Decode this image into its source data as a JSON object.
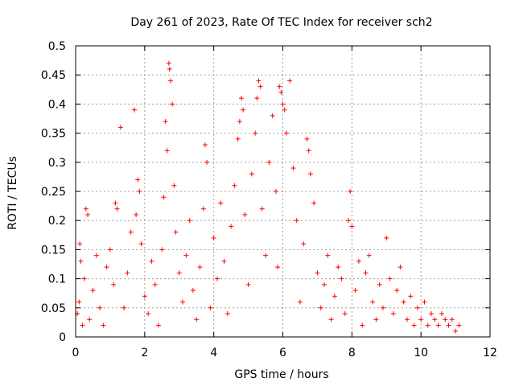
{
  "chart_data": {
    "type": "scatter",
    "title": "Day 261 of 2023, Rate Of TEC Index for receiver sch2",
    "xlabel": "GPS time / hours",
    "ylabel": "ROTI / TECUs",
    "xlim": [
      0,
      12
    ],
    "ylim": [
      0,
      0.5
    ],
    "xticks": [
      "0",
      "2",
      "4",
      "6",
      "8",
      "10",
      "12"
    ],
    "yticks": [
      "0",
      "0.05",
      "0.1",
      "0.15",
      "0.2",
      "0.25",
      "0.3",
      "0.35",
      "0.4",
      "0.45",
      "0.5"
    ],
    "grid": true,
    "legend": "none",
    "marker": "plus",
    "color": "#ff0000",
    "series": [
      {
        "values": [
          [
            0.05,
            0.04
          ],
          [
            0.1,
            0.06
          ],
          [
            0.12,
            0.16
          ],
          [
            0.15,
            0.13
          ],
          [
            0.2,
            0.02
          ],
          [
            0.25,
            0.1
          ],
          [
            0.3,
            0.22
          ],
          [
            0.35,
            0.21
          ],
          [
            0.4,
            0.03
          ],
          [
            0.5,
            0.08
          ],
          [
            0.6,
            0.14
          ],
          [
            0.7,
            0.05
          ],
          [
            0.8,
            0.02
          ],
          [
            0.9,
            0.12
          ],
          [
            1.0,
            0.15
          ],
          [
            1.1,
            0.09
          ],
          [
            1.15,
            0.23
          ],
          [
            1.2,
            0.22
          ],
          [
            1.3,
            0.36
          ],
          [
            1.4,
            0.05
          ],
          [
            1.5,
            0.11
          ],
          [
            1.6,
            0.18
          ],
          [
            1.7,
            0.39
          ],
          [
            1.75,
            0.21
          ],
          [
            1.8,
            0.27
          ],
          [
            1.85,
            0.25
          ],
          [
            1.9,
            0.16
          ],
          [
            2.0,
            0.07
          ],
          [
            2.1,
            0.04
          ],
          [
            2.2,
            0.13
          ],
          [
            2.3,
            0.09
          ],
          [
            2.4,
            0.02
          ],
          [
            2.5,
            0.15
          ],
          [
            2.55,
            0.24
          ],
          [
            2.6,
            0.37
          ],
          [
            2.65,
            0.32
          ],
          [
            2.7,
            0.47
          ],
          [
            2.72,
            0.46
          ],
          [
            2.75,
            0.44
          ],
          [
            2.8,
            0.4
          ],
          [
            2.85,
            0.26
          ],
          [
            2.9,
            0.18
          ],
          [
            3.0,
            0.11
          ],
          [
            3.1,
            0.06
          ],
          [
            3.2,
            0.14
          ],
          [
            3.3,
            0.2
          ],
          [
            3.4,
            0.08
          ],
          [
            3.5,
            0.03
          ],
          [
            3.6,
            0.12
          ],
          [
            3.7,
            0.22
          ],
          [
            3.75,
            0.33
          ],
          [
            3.8,
            0.3
          ],
          [
            3.9,
            0.05
          ],
          [
            4.0,
            0.17
          ],
          [
            4.1,
            0.1
          ],
          [
            4.2,
            0.23
          ],
          [
            4.3,
            0.13
          ],
          [
            4.4,
            0.04
          ],
          [
            4.5,
            0.19
          ],
          [
            4.6,
            0.26
          ],
          [
            4.7,
            0.34
          ],
          [
            4.75,
            0.37
          ],
          [
            4.8,
            0.41
          ],
          [
            4.85,
            0.39
          ],
          [
            4.9,
            0.21
          ],
          [
            5.0,
            0.09
          ],
          [
            5.1,
            0.28
          ],
          [
            5.2,
            0.35
          ],
          [
            5.25,
            0.41
          ],
          [
            5.3,
            0.44
          ],
          [
            5.35,
            0.43
          ],
          [
            5.4,
            0.22
          ],
          [
            5.5,
            0.14
          ],
          [
            5.6,
            0.3
          ],
          [
            5.7,
            0.38
          ],
          [
            5.8,
            0.25
          ],
          [
            5.85,
            0.12
          ],
          [
            5.9,
            0.43
          ],
          [
            5.95,
            0.42
          ],
          [
            6.0,
            0.4
          ],
          [
            6.05,
            0.39
          ],
          [
            6.1,
            0.35
          ],
          [
            6.2,
            0.44
          ],
          [
            6.3,
            0.29
          ],
          [
            6.4,
            0.2
          ],
          [
            6.5,
            0.06
          ],
          [
            6.6,
            0.16
          ],
          [
            6.7,
            0.34
          ],
          [
            6.75,
            0.32
          ],
          [
            6.8,
            0.28
          ],
          [
            6.9,
            0.23
          ],
          [
            7.0,
            0.11
          ],
          [
            7.1,
            0.05
          ],
          [
            7.2,
            0.09
          ],
          [
            7.3,
            0.14
          ],
          [
            7.4,
            0.03
          ],
          [
            7.5,
            0.07
          ],
          [
            7.6,
            0.12
          ],
          [
            7.7,
            0.1
          ],
          [
            7.8,
            0.04
          ],
          [
            7.9,
            0.2
          ],
          [
            7.95,
            0.25
          ],
          [
            8.0,
            0.19
          ],
          [
            8.1,
            0.08
          ],
          [
            8.2,
            0.13
          ],
          [
            8.3,
            0.02
          ],
          [
            8.4,
            0.11
          ],
          [
            8.5,
            0.14
          ],
          [
            8.6,
            0.06
          ],
          [
            8.7,
            0.03
          ],
          [
            8.8,
            0.09
          ],
          [
            8.9,
            0.05
          ],
          [
            9.0,
            0.17
          ],
          [
            9.1,
            0.1
          ],
          [
            9.2,
            0.04
          ],
          [
            9.3,
            0.08
          ],
          [
            9.4,
            0.12
          ],
          [
            9.5,
            0.06
          ],
          [
            9.6,
            0.03
          ],
          [
            9.7,
            0.07
          ],
          [
            9.8,
            0.02
          ],
          [
            9.9,
            0.05
          ],
          [
            10.0,
            0.03
          ],
          [
            10.1,
            0.06
          ],
          [
            10.2,
            0.02
          ],
          [
            10.3,
            0.04
          ],
          [
            10.4,
            0.03
          ],
          [
            10.5,
            0.02
          ],
          [
            10.6,
            0.04
          ],
          [
            10.7,
            0.03
          ],
          [
            10.8,
            0.02
          ],
          [
            10.9,
            0.03
          ],
          [
            11.0,
            0.01
          ],
          [
            11.1,
            0.02
          ]
        ]
      }
    ]
  }
}
